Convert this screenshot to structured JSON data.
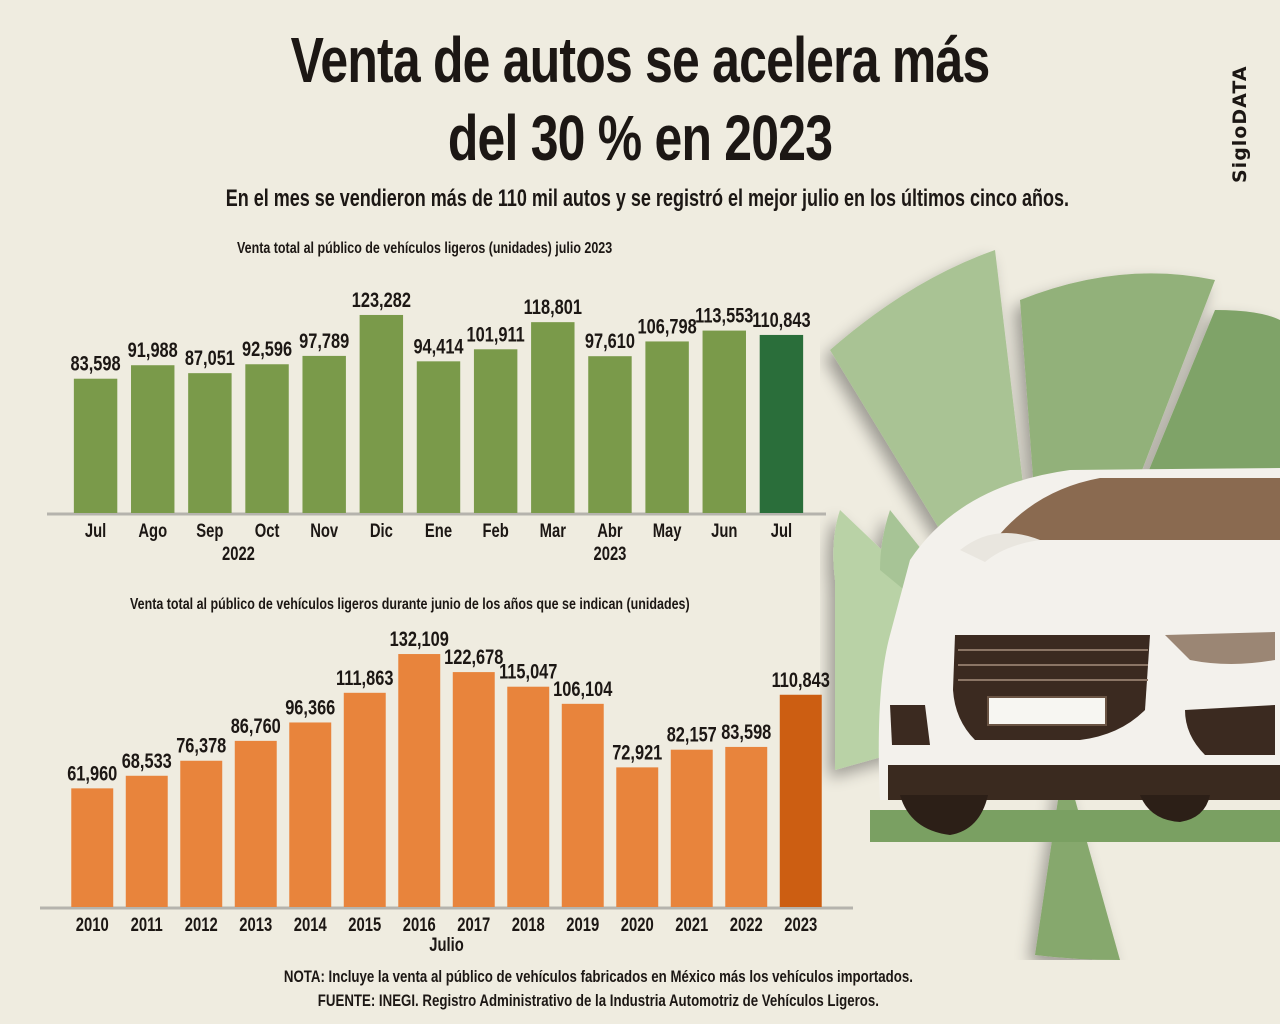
{
  "header": {
    "title_line1": "Venta de autos se acelera más",
    "title_line2": "del 30 % en 2023",
    "subtitle": "En el mes se vendieron más de 110 mil autos y se registró el mejor julio en los últimos cinco años.",
    "brand": "SigloDATA"
  },
  "colors": {
    "background": "#efece0",
    "green_bar": "#7a9a4a",
    "green_highlight": "#2a6e3a",
    "orange_bar": "#e8843c",
    "orange_highlight": "#cc5e12",
    "baseline": "#b5b3ad",
    "text": "#1c1714"
  },
  "illustration": {
    "icon": "car-front-icon"
  },
  "chart_data": [
    {
      "type": "bar",
      "title": "Venta total al público de vehículos ligeros (unidades) julio 2023",
      "categories": [
        "Jul",
        "Ago",
        "Sep",
        "Oct",
        "Nov",
        "Dic",
        "Ene",
        "Feb",
        "Mar",
        "Abr",
        "May",
        "Jun",
        "Jul"
      ],
      "values": [
        83598,
        91988,
        87051,
        92596,
        97789,
        123282,
        94414,
        101911,
        118801,
        97610,
        106798,
        113553,
        110843
      ],
      "labels": [
        "83,598",
        "91,988",
        "87,051",
        "92,596",
        "97,789",
        "123,282",
        "94,414",
        "101,911",
        "118,801",
        "97,610",
        "106,798",
        "113,553",
        "110,843"
      ],
      "highlight_index": 12,
      "group_labels": [
        {
          "label": "2022",
          "under_category_index": 2.5
        },
        {
          "label": "2023",
          "under_category_index": 9
        }
      ],
      "xlabel": "",
      "ylabel": "",
      "ylim": [
        0,
        125000
      ],
      "grid": false,
      "legend": "none"
    },
    {
      "type": "bar",
      "title": "Venta total al público de vehículos ligeros durante junio de los años que se indican (unidades)",
      "categories": [
        "2010",
        "2011",
        "2012",
        "2013",
        "2014",
        "2015",
        "2016",
        "2017",
        "2018",
        "2019",
        "2020",
        "2021",
        "2022",
        "2023"
      ],
      "values": [
        61960,
        68533,
        76378,
        86760,
        96366,
        111863,
        132109,
        122678,
        115047,
        106104,
        72921,
        82157,
        83598,
        110843
      ],
      "labels": [
        "61,960",
        "68,533",
        "76,378",
        "86,760",
        "96,366",
        "111,863",
        "132,109",
        "122,678",
        "115,047",
        "106,104",
        "72,921",
        "82,157",
        "83,598",
        "110,843"
      ],
      "highlight_index": 13,
      "xlabel": "Julio",
      "ylabel": "",
      "ylim": [
        0,
        135000
      ],
      "grid": false,
      "legend": "none"
    }
  ],
  "footer": {
    "note": "NOTA: Incluye la venta al público de vehículos fabricados en México más los vehículos importados.",
    "source": "FUENTE: INEGI. Registro Administrativo de la Industria Automotriz de Vehículos Ligeros."
  }
}
